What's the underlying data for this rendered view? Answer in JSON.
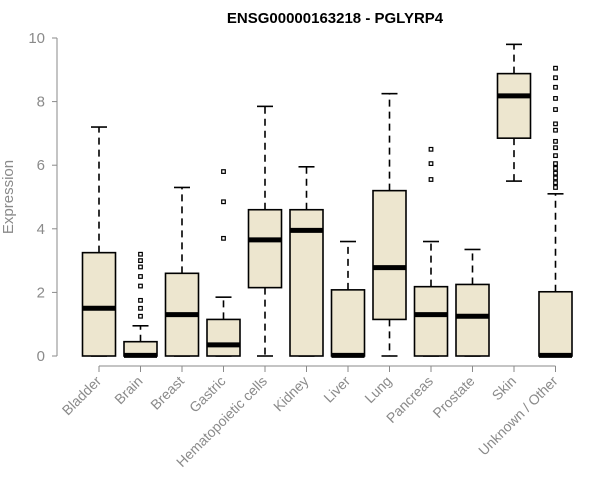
{
  "chart_data": {
    "type": "boxplot",
    "title": "ENSG00000163218 - PGLYRP4",
    "xlabel": "",
    "ylabel": "Expression",
    "ylim": [
      0,
      10
    ],
    "yticks": [
      0,
      2,
      4,
      6,
      8,
      10
    ],
    "box_color": "#ede6cf",
    "categories": [
      "Bladder",
      "Brain",
      "Breast",
      "Gastric",
      "Hematopoietic cells",
      "Kidney",
      "Liver",
      "Lung",
      "Pancreas",
      "Prostate",
      "Skin",
      "Unknown / Other"
    ],
    "boxes": [
      {
        "min": 0,
        "q1": 0,
        "median": 1.5,
        "q3": 3.25,
        "max": 7.2,
        "outliers": []
      },
      {
        "min": 0,
        "q1": 0,
        "median": 0.02,
        "q3": 0.45,
        "max": 0.95,
        "outliers": [
          1.25,
          1.5,
          1.75,
          2.2,
          2.5,
          2.8,
          3.0,
          3.2
        ]
      },
      {
        "min": 0,
        "q1": 0,
        "median": 1.3,
        "q3": 2.6,
        "max": 5.3,
        "outliers": []
      },
      {
        "min": 0,
        "q1": 0,
        "median": 0.35,
        "q3": 1.15,
        "max": 1.85,
        "outliers": [
          3.7,
          4.85,
          5.8
        ]
      },
      {
        "min": 0,
        "q1": 2.15,
        "median": 3.65,
        "q3": 4.6,
        "max": 7.85,
        "outliers": []
      },
      {
        "min": 0,
        "q1": 0,
        "median": 3.95,
        "q3": 4.6,
        "max": 5.95,
        "outliers": []
      },
      {
        "min": 0,
        "q1": 0,
        "median": 0.02,
        "q3": 2.08,
        "max": 3.6,
        "outliers": []
      },
      {
        "min": 0,
        "q1": 1.15,
        "median": 2.78,
        "q3": 5.2,
        "max": 8.25,
        "outliers": []
      },
      {
        "min": 0,
        "q1": 0,
        "median": 1.3,
        "q3": 2.18,
        "max": 3.6,
        "outliers": [
          5.55,
          6.05,
          6.5
        ]
      },
      {
        "min": 0,
        "q1": 0,
        "median": 1.25,
        "q3": 2.25,
        "max": 3.35,
        "outliers": []
      },
      {
        "min": 5.5,
        "q1": 6.85,
        "median": 8.18,
        "q3": 8.88,
        "max": 9.8,
        "outliers": []
      },
      {
        "min": 0,
        "q1": 0,
        "median": 0.02,
        "q3": 2.02,
        "max": 5.1,
        "outliers": [
          5.3,
          5.45,
          5.6,
          5.75,
          5.9,
          6.05,
          6.3,
          6.55,
          6.75,
          7.1,
          7.3,
          7.75,
          8.1,
          8.45,
          8.75,
          9.05
        ]
      }
    ]
  }
}
